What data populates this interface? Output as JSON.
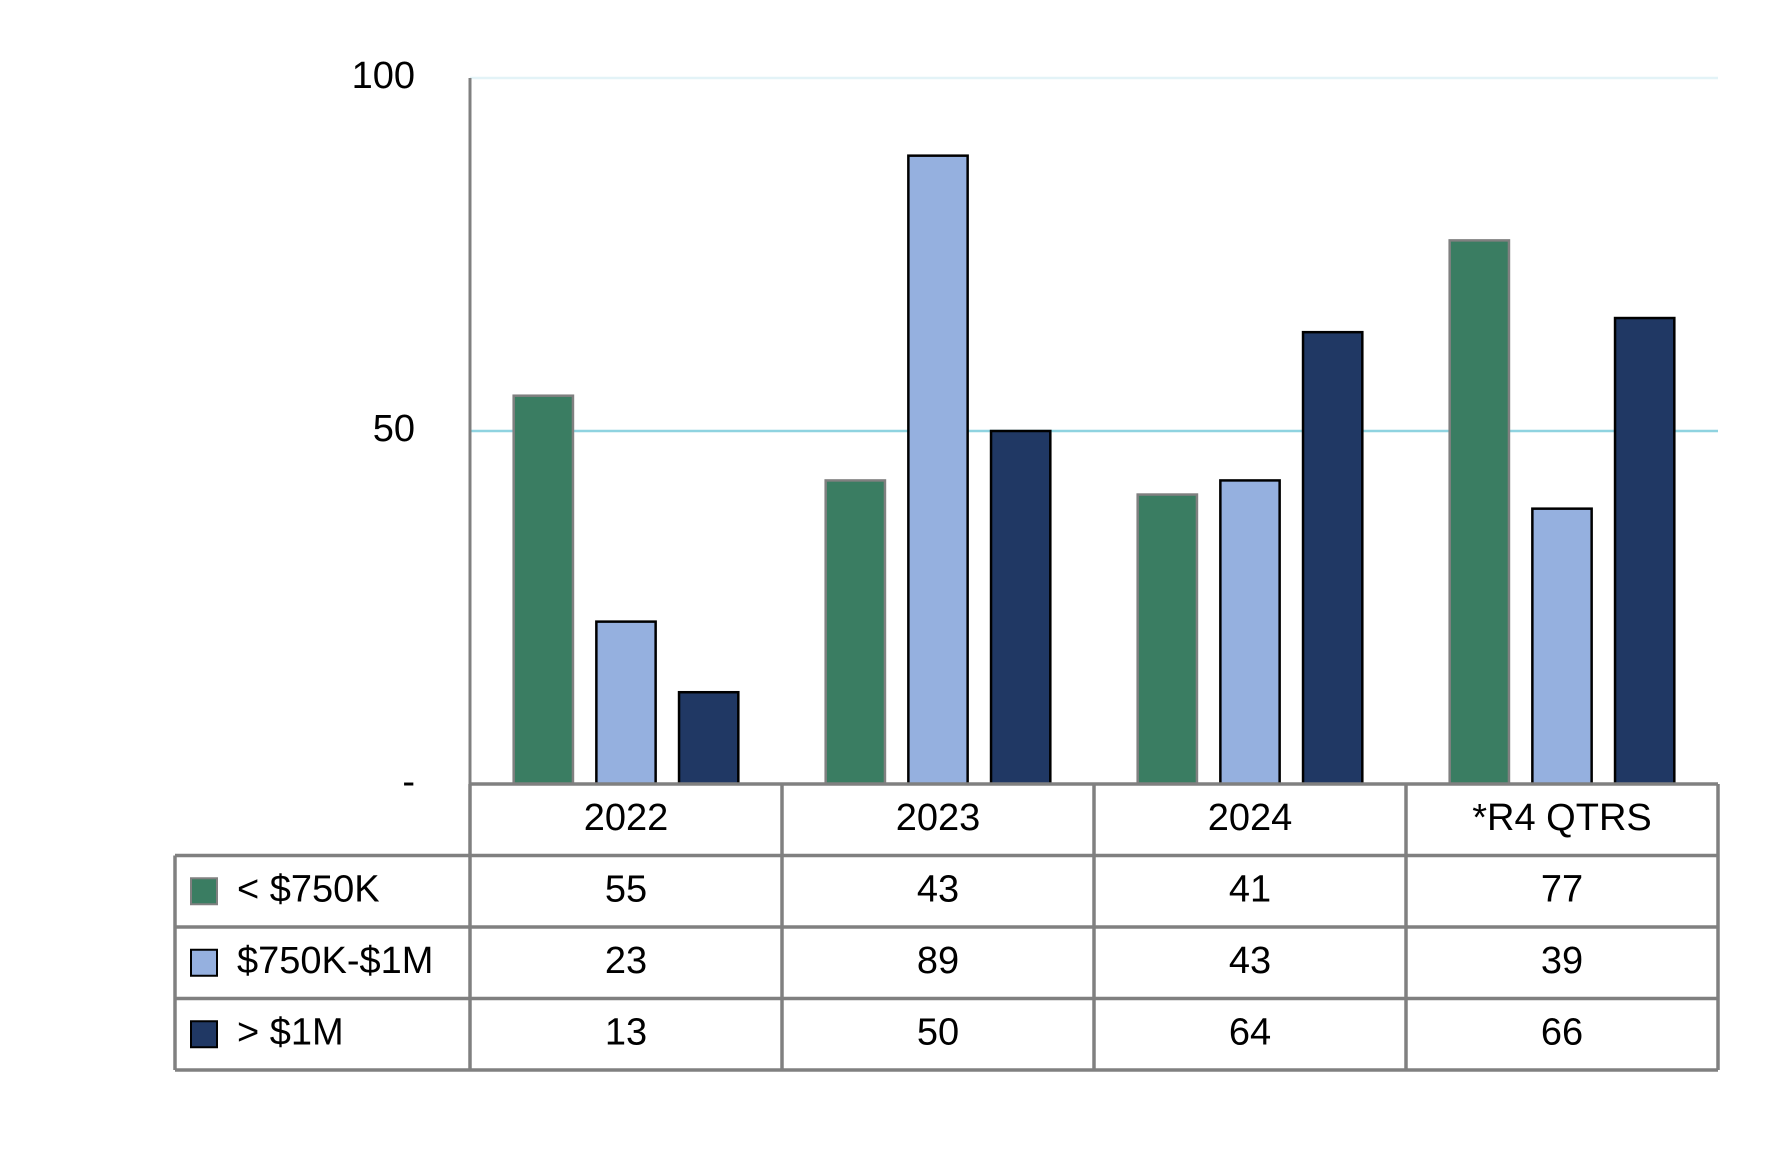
{
  "chart_data": {
    "type": "bar",
    "categories": [
      "2022",
      "2023",
      "2024",
      "*R4 QTRS"
    ],
    "series": [
      {
        "name": "< $750K",
        "color": "#3a7d62",
        "values": [
          55,
          43,
          41,
          77
        ]
      },
      {
        "name": "$750K-$1M",
        "color": "#95b0df",
        "values": [
          23,
          89,
          43,
          39
        ]
      },
      {
        "name": "> $1M",
        "color": "#203864",
        "values": [
          13,
          50,
          64,
          66
        ]
      }
    ],
    "ylim": [
      0,
      100
    ],
    "yticks": [
      {
        "value": 0,
        "label": "-"
      },
      50,
      100
    ],
    "grid": true
  }
}
